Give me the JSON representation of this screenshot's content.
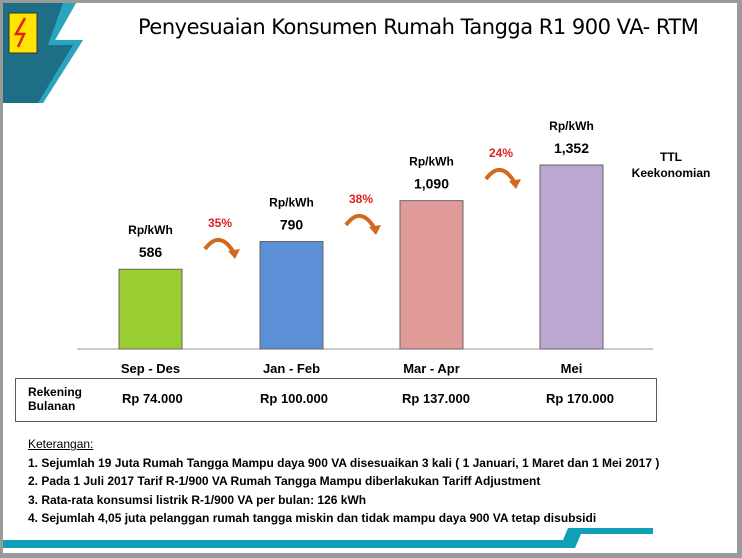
{
  "title": "Penyesuaian Konsumen Rumah Tangga R1 900 VA- RTM",
  "chart_data": {
    "type": "bar",
    "categories": [
      "Sep - Des",
      "Jan - Feb",
      "Mar - Apr",
      "Mei"
    ],
    "values": [
      586,
      790,
      1090,
      1352
    ],
    "value_labels": [
      "586",
      "790",
      "1,090",
      "1,352"
    ],
    "unit_label": "Rp/kWh",
    "colors": [
      "#9acd32",
      "#5b8fd6",
      "#e09a98",
      "#bca6d2"
    ],
    "increases": [
      "35%",
      "38%",
      "24%"
    ],
    "annotation": [
      "TTL",
      "Keekonomian"
    ],
    "ylim": [
      0,
      1500
    ]
  },
  "table": {
    "row_label": [
      "Rekening",
      "Bulanan"
    ],
    "values": [
      "Rp 74.000",
      "Rp 100.000",
      "Rp 137.000",
      "Rp 170.000"
    ]
  },
  "notes": {
    "heading": "Keterangan:",
    "items": [
      "1.  Sejumlah 19 Juta  Rumah Tangga Mampu daya 900 VA disesuaikan 3 kali ( 1 Januari, 1 Maret dan 1 Mei 2017 )",
      "2.  Pada 1 Juli 2017 Tarif R-1/900 VA Rumah Tangga Mampu diberlakukan Tariff Adjustment",
      "3.  Rata-rata konsumsi listrik R-1/900 VA per bulan: 126 kWh",
      "4.  Sejumlah 4,05 juta pelanggan rumah tangga miskin dan tidak mampu daya 900 VA tetap disubsidi"
    ]
  }
}
